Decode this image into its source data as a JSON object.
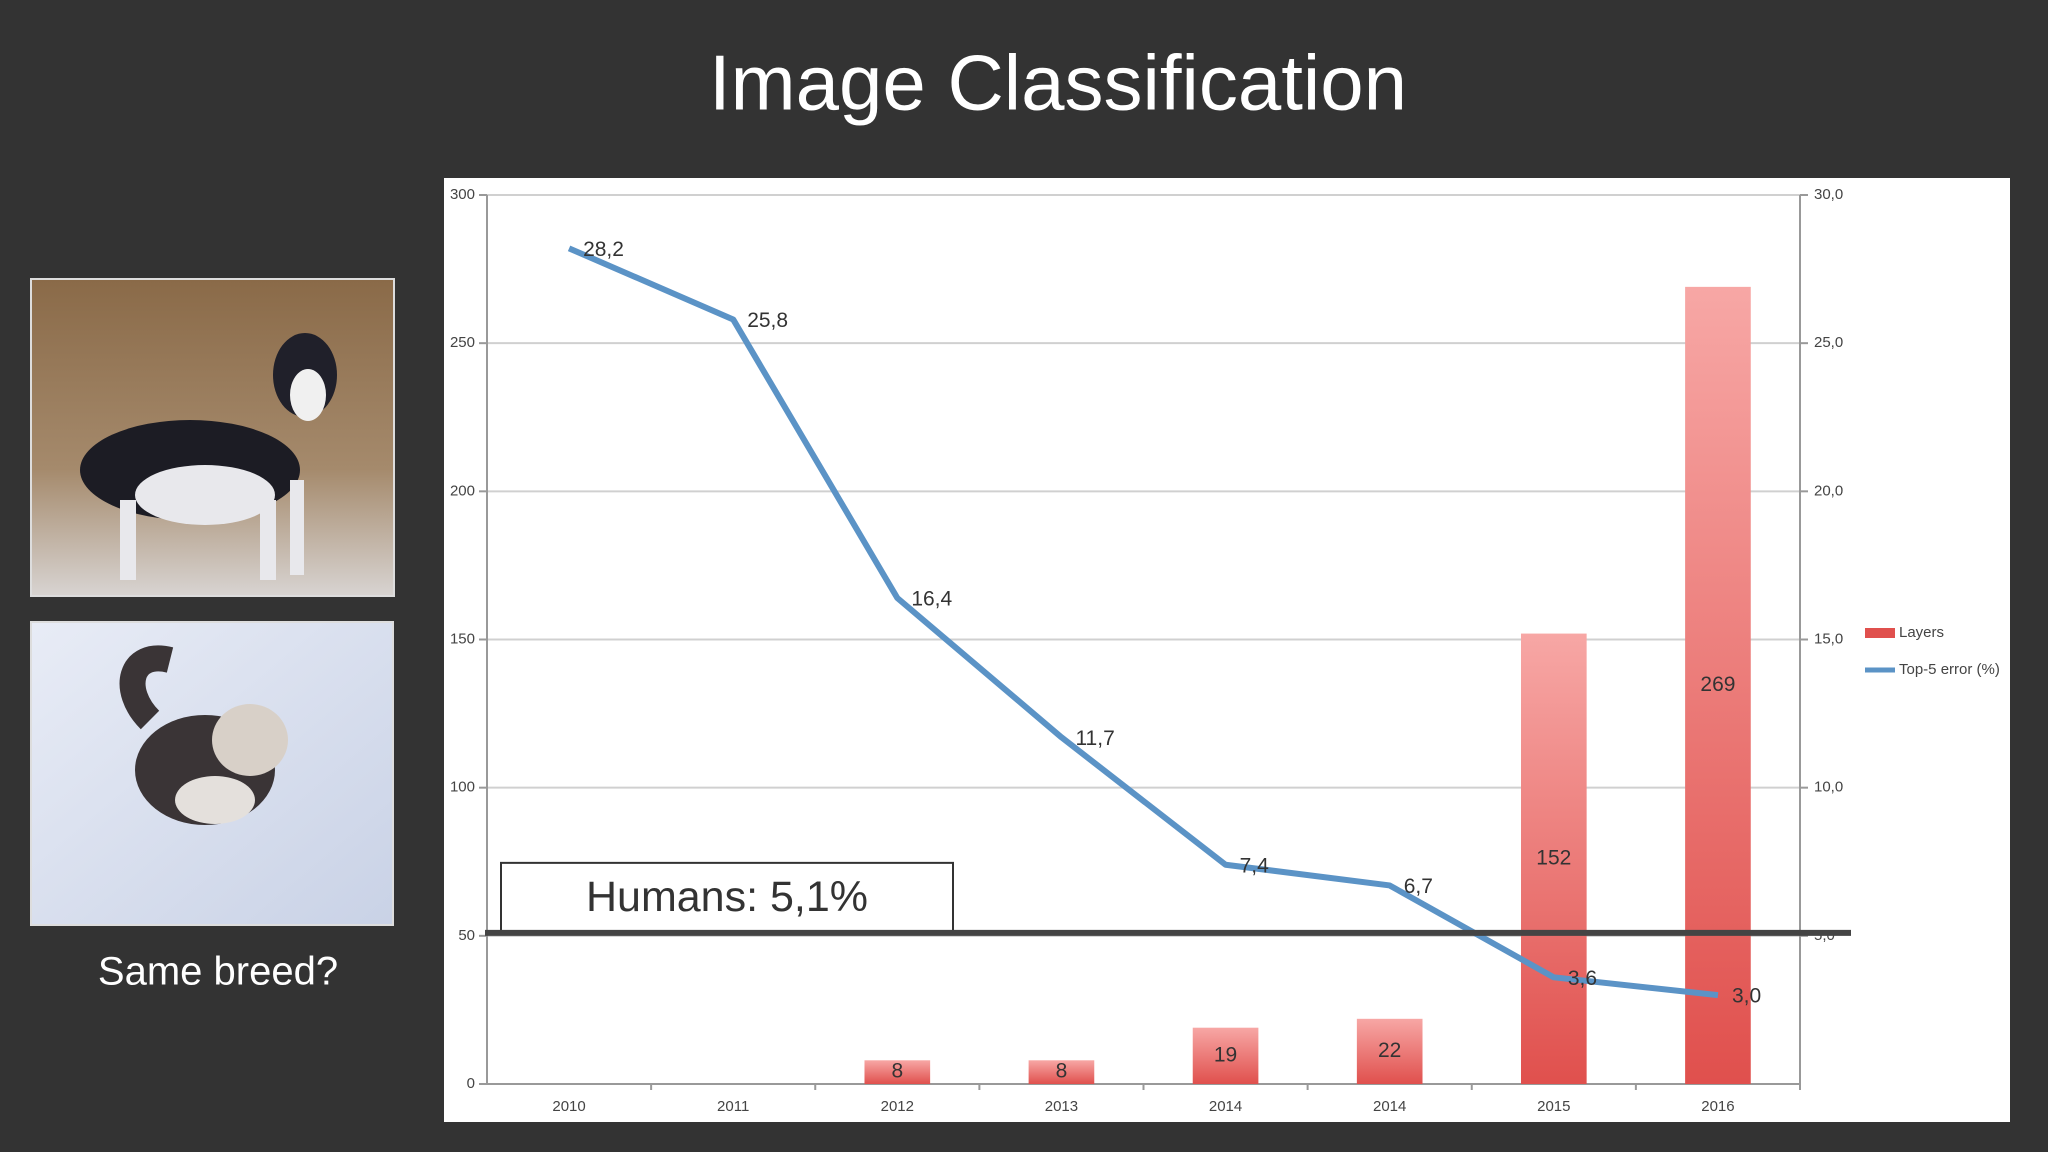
{
  "title": "Image Classification",
  "caption": "Same breed?",
  "chart_data": {
    "type": "bar-line",
    "categories": [
      "2010",
      "2011",
      "2012",
      "2013",
      "2014",
      "2014",
      "2015",
      "2016"
    ],
    "series": [
      {
        "name": "Layers",
        "type": "bar",
        "color": "#e0504d",
        "values": [
          null,
          null,
          8,
          8,
          19,
          22,
          152,
          269
        ]
      },
      {
        "name": "Top-5 error (%)",
        "type": "line",
        "axis": "y2",
        "color": "#5b93c6",
        "values": [
          28.2,
          25.8,
          16.4,
          11.7,
          7.4,
          6.7,
          3.6,
          3.0
        ],
        "value_labels": [
          "28,2",
          "25,8",
          "16,4",
          "11,7",
          "7,4",
          "6,7",
          "3,6",
          "3,0"
        ]
      }
    ],
    "ylim": [
      0,
      300
    ],
    "yticks": [
      0,
      50,
      100,
      150,
      200,
      250,
      300
    ],
    "y2lim": [
      0,
      30
    ],
    "y2ticks": [
      {
        "value": 5,
        "label": "5,0"
      },
      {
        "value": 10,
        "label": "10,0"
      },
      {
        "value": 15,
        "label": "15,0"
      },
      {
        "value": 20,
        "label": "20,0"
      },
      {
        "value": 25,
        "label": "25,0"
      },
      {
        "value": 30,
        "label": "30,0"
      }
    ],
    "grid": true,
    "legend": "right",
    "reference_line": {
      "value": 5.1,
      "axis": "y2",
      "label": "Humans: 5,1%"
    }
  }
}
